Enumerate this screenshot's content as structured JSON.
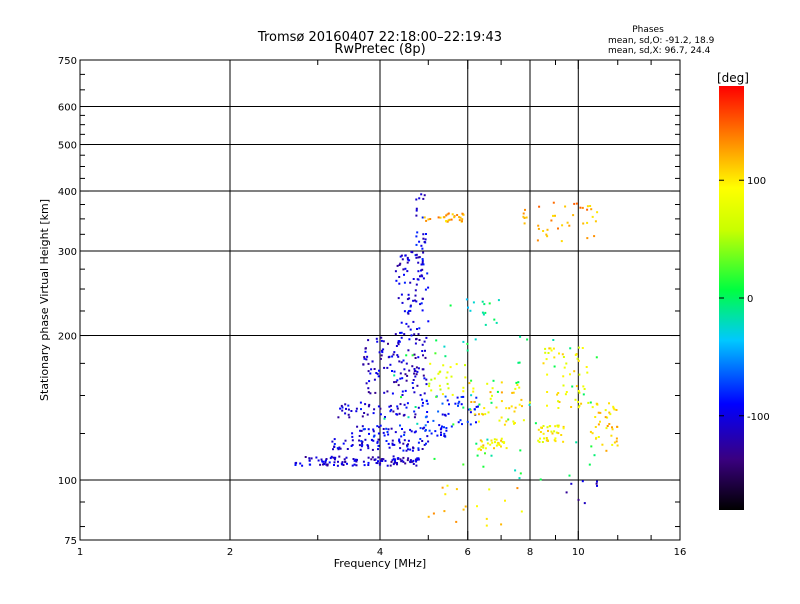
{
  "chart_data": {
    "type": "scatter",
    "title": "Tromsø 20160407 22:18:00–22:19:43",
    "subtitle": "RwPretec (8p)",
    "xlabel": "Frequency [MHz]",
    "ylabel": "Stationary phase Virtual Height [km]",
    "x_scale": "log",
    "y_scale": "log",
    "xlim": [
      1,
      16
    ],
    "ylim": [
      75,
      750
    ],
    "x_ticks": [
      1,
      2,
      4,
      6,
      8,
      10,
      16
    ],
    "x_tick_labels": [
      "1",
      "2",
      "4",
      "6",
      "8",
      "10",
      "16"
    ],
    "y_ticks": [
      75,
      100,
      200,
      300,
      400,
      500,
      600,
      750
    ],
    "y_tick_labels": [
      "75",
      "100",
      "200",
      "300",
      "400",
      "500",
      "600",
      "750"
    ],
    "grid": true,
    "stats": {
      "heading": "Phases",
      "line_o": "mean, sd,O:  -91.2, 18.9",
      "line_x": "mean, sd,X:  96.7, 24.4"
    },
    "colorbar": {
      "label": "[deg]",
      "range": [
        -180,
        180
      ],
      "ticks": [
        100,
        0,
        -100
      ],
      "tick_labels": [
        "100",
        "0",
        "-100"
      ],
      "colormap": "rainbow",
      "placement": "right"
    },
    "point_color_value": "phase [deg]",
    "clusters": [
      {
        "f0": 2.7,
        "f1": 4.8,
        "h0": 107,
        "h1": 112,
        "phase": -110,
        "n": 120
      },
      {
        "f0": 3.2,
        "f1": 5.0,
        "h0": 115,
        "h1": 122,
        "phase": -100,
        "n": 70
      },
      {
        "f0": 3.5,
        "f1": 5.6,
        "h0": 123,
        "h1": 130,
        "phase": -95,
        "n": 60
      },
      {
        "f0": 3.3,
        "f1": 5.0,
        "h0": 135,
        "h1": 145,
        "phase": -105,
        "n": 50
      },
      {
        "f0": 3.7,
        "f1": 5.0,
        "h0": 150,
        "h1": 200,
        "phase": -110,
        "n": 120
      },
      {
        "f0": 4.3,
        "f1": 5.0,
        "h0": 200,
        "h1": 300,
        "phase": -105,
        "n": 80
      },
      {
        "f0": 4.7,
        "f1": 4.95,
        "h0": 280,
        "h1": 400,
        "phase": -100,
        "n": 30
      },
      {
        "f0": 4.8,
        "f1": 6.3,
        "h0": 130,
        "h1": 150,
        "phase": -80,
        "n": 45
      },
      {
        "f0": 5.0,
        "f1": 6.0,
        "h0": 150,
        "h1": 175,
        "phase": 75,
        "n": 25
      },
      {
        "f0": 4.9,
        "f1": 6.0,
        "h0": 345,
        "h1": 360,
        "phase": 120,
        "n": 30
      },
      {
        "f0": 6.3,
        "f1": 7.2,
        "h0": 115,
        "h1": 122,
        "phase": 95,
        "n": 30
      },
      {
        "f0": 6.0,
        "f1": 8.0,
        "h0": 130,
        "h1": 160,
        "phase": 100,
        "n": 45
      },
      {
        "f0": 8.3,
        "f1": 9.4,
        "h0": 120,
        "h1": 130,
        "phase": 90,
        "n": 35
      },
      {
        "f0": 8.5,
        "f1": 10.5,
        "h0": 140,
        "h1": 190,
        "phase": 90,
        "n": 50
      },
      {
        "f0": 10.5,
        "f1": 12.0,
        "h0": 115,
        "h1": 145,
        "phase": 105,
        "n": 40
      },
      {
        "f0": 7.5,
        "f1": 11.0,
        "h0": 310,
        "h1": 380,
        "phase": 125,
        "n": 40
      },
      {
        "f0": 5.5,
        "f1": 7.0,
        "h0": 210,
        "h1": 240,
        "phase": -15,
        "n": 15
      },
      {
        "f0": 5.0,
        "f1": 8.0,
        "h0": 80,
        "h1": 98,
        "phase": 110,
        "n": 18
      },
      {
        "f0": 9.0,
        "f1": 11.0,
        "h0": 88,
        "h1": 100,
        "phase": -110,
        "n": 8
      },
      {
        "f0": 4.0,
        "f1": 11.0,
        "h0": 100,
        "h1": 200,
        "phase": 0,
        "n": 60
      }
    ]
  }
}
